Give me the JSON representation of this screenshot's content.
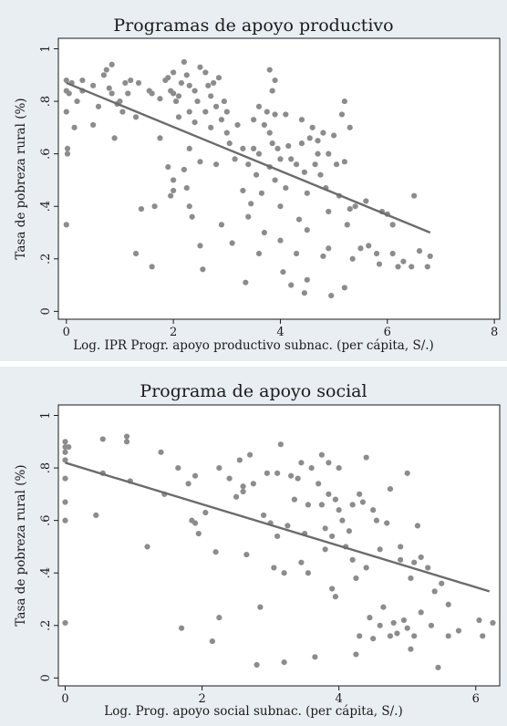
{
  "chart_data": [
    {
      "type": "scatter",
      "title": "Programas de apoyo productivo",
      "xlabel": "Log. IPR Progr. apoyo productivo subnac. (per cápita, S/.)",
      "ylabel": "Tasa de pobreza rural (%)",
      "xlim": [
        -0.15,
        8.1
      ],
      "ylim": [
        -0.03,
        1.04
      ],
      "xticks": [
        0,
        2,
        4,
        6,
        8
      ],
      "yticks": [
        0,
        0.2,
        0.4,
        0.6,
        0.8,
        1
      ],
      "ytick_labels": [
        "0",
        ".2",
        ".4",
        ".6",
        ".8",
        "1"
      ],
      "grid": false,
      "colors": {
        "points": "#8c8c8c",
        "fit": "#6b6b6b"
      },
      "fit_line": {
        "x": [
          0,
          6.8
        ],
        "y": [
          0.87,
          0.3
        ]
      },
      "points": [
        [
          0.0,
          0.88
        ],
        [
          0.0,
          0.84
        ],
        [
          0.0,
          0.76
        ],
        [
          0.02,
          0.62
        ],
        [
          0.02,
          0.6
        ],
        [
          0.0,
          0.33
        ],
        [
          0.05,
          0.83
        ],
        [
          0.1,
          0.87
        ],
        [
          0.15,
          0.7
        ],
        [
          0.2,
          0.8
        ],
        [
          0.3,
          0.88
        ],
        [
          0.3,
          0.84
        ],
        [
          0.5,
          0.86
        ],
        [
          0.5,
          0.71
        ],
        [
          0.6,
          0.78
        ],
        [
          0.7,
          0.9
        ],
        [
          0.75,
          0.92
        ],
        [
          0.8,
          0.85
        ],
        [
          0.85,
          0.83
        ],
        [
          0.85,
          0.94
        ],
        [
          0.9,
          0.66
        ],
        [
          0.95,
          0.79
        ],
        [
          1.0,
          0.8
        ],
        [
          1.05,
          0.76
        ],
        [
          1.1,
          0.87
        ],
        [
          1.15,
          0.83
        ],
        [
          1.2,
          0.88
        ],
        [
          1.3,
          0.74
        ],
        [
          1.35,
          0.87
        ],
        [
          1.3,
          0.22
        ],
        [
          1.4,
          0.39
        ],
        [
          1.55,
          0.84
        ],
        [
          1.6,
          0.83
        ],
        [
          1.65,
          0.4
        ],
        [
          1.6,
          0.17
        ],
        [
          1.75,
          0.81
        ],
        [
          1.75,
          0.66
        ],
        [
          1.85,
          0.88
        ],
        [
          1.9,
          0.89
        ],
        [
          1.95,
          0.84
        ],
        [
          2.0,
          0.91
        ],
        [
          2.0,
          0.83
        ],
        [
          2.05,
          0.8
        ],
        [
          2.0,
          0.46
        ],
        [
          2.0,
          0.5
        ],
        [
          1.95,
          0.44
        ],
        [
          1.9,
          0.55
        ],
        [
          2.1,
          0.82
        ],
        [
          2.1,
          0.74
        ],
        [
          2.15,
          0.87
        ],
        [
          2.2,
          0.95
        ],
        [
          2.25,
          0.9
        ],
        [
          2.3,
          0.86
        ],
        [
          2.3,
          0.76
        ],
        [
          2.3,
          0.62
        ],
        [
          2.2,
          0.54
        ],
        [
          2.25,
          0.47
        ],
        [
          2.3,
          0.4
        ],
        [
          2.35,
          0.36
        ],
        [
          2.4,
          0.84
        ],
        [
          2.4,
          0.72
        ],
        [
          2.45,
          0.8
        ],
        [
          2.5,
          0.93
        ],
        [
          2.5,
          0.57
        ],
        [
          2.5,
          0.25
        ],
        [
          2.55,
          0.16
        ],
        [
          2.6,
          0.91
        ],
        [
          2.6,
          0.76
        ],
        [
          2.65,
          0.86
        ],
        [
          2.7,
          0.82
        ],
        [
          2.7,
          0.7
        ],
        [
          2.75,
          0.87
        ],
        [
          2.8,
          0.78
        ],
        [
          2.8,
          0.56
        ],
        [
          2.85,
          0.89
        ],
        [
          2.9,
          0.33
        ],
        [
          2.9,
          0.73
        ],
        [
          2.95,
          0.8
        ],
        [
          3.0,
          0.76
        ],
        [
          3.0,
          0.68
        ],
        [
          3.05,
          0.64
        ],
        [
          3.1,
          0.26
        ],
        [
          3.15,
          0.58
        ],
        [
          3.2,
          0.71
        ],
        [
          3.3,
          0.62
        ],
        [
          3.3,
          0.46
        ],
        [
          3.35,
          0.11
        ],
        [
          3.4,
          0.56
        ],
        [
          3.4,
          0.36
        ],
        [
          3.45,
          0.41
        ],
        [
          3.5,
          0.73
        ],
        [
          3.5,
          0.62
        ],
        [
          3.55,
          0.52
        ],
        [
          3.6,
          0.78
        ],
        [
          3.6,
          0.6
        ],
        [
          3.6,
          0.22
        ],
        [
          3.65,
          0.45
        ],
        [
          3.7,
          0.71
        ],
        [
          3.7,
          0.3
        ],
        [
          3.75,
          0.76
        ],
        [
          3.8,
          0.92
        ],
        [
          3.8,
          0.68
        ],
        [
          3.8,
          0.55
        ],
        [
          3.85,
          0.84
        ],
        [
          3.85,
          0.64
        ],
        [
          3.9,
          0.88
        ],
        [
          3.9,
          0.75
        ],
        [
          3.9,
          0.5
        ],
        [
          3.95,
          0.62
        ],
        [
          4.0,
          0.58
        ],
        [
          4.0,
          0.4
        ],
        [
          4.0,
          0.27
        ],
        [
          4.05,
          0.15
        ],
        [
          4.1,
          0.75
        ],
        [
          4.1,
          0.47
        ],
        [
          4.15,
          0.63
        ],
        [
          4.2,
          0.58
        ],
        [
          4.2,
          0.1
        ],
        [
          4.3,
          0.56
        ],
        [
          4.3,
          0.22
        ],
        [
          4.35,
          0.35
        ],
        [
          4.4,
          0.73
        ],
        [
          4.4,
          0.64
        ],
        [
          4.45,
          0.53
        ],
        [
          4.5,
          0.31
        ],
        [
          4.5,
          0.45
        ],
        [
          4.55,
          0.66
        ],
        [
          4.6,
          0.7
        ],
        [
          4.65,
          0.56
        ],
        [
          4.7,
          0.65
        ],
        [
          4.7,
          0.6
        ],
        [
          4.75,
          0.52
        ],
        [
          4.8,
          0.68
        ],
        [
          4.8,
          0.21
        ],
        [
          4.85,
          0.47
        ],
        [
          4.9,
          0.6
        ],
        [
          4.9,
          0.38
        ],
        [
          5.0,
          0.67
        ],
        [
          5.05,
          0.56
        ],
        [
          5.1,
          0.44
        ],
        [
          5.15,
          0.75
        ],
        [
          5.2,
          0.8
        ],
        [
          5.2,
          0.57
        ],
        [
          5.25,
          0.33
        ],
        [
          5.3,
          0.7
        ],
        [
          5.3,
          0.39
        ],
        [
          5.35,
          0.2
        ],
        [
          5.4,
          0.4
        ],
        [
          5.5,
          0.24
        ],
        [
          5.6,
          0.42
        ],
        [
          5.65,
          0.25
        ],
        [
          5.8,
          0.22
        ],
        [
          5.9,
          0.38
        ],
        [
          6.0,
          0.37
        ],
        [
          6.1,
          0.22
        ],
        [
          6.2,
          0.17
        ],
        [
          6.3,
          0.19
        ],
        [
          6.5,
          0.44
        ],
        [
          6.6,
          0.23
        ],
        [
          6.8,
          0.21
        ],
        [
          6.75,
          0.17
        ],
        [
          5.2,
          0.09
        ],
        [
          4.95,
          0.06
        ],
        [
          4.45,
          0.07
        ],
        [
          4.9,
          0.24
        ],
        [
          6.1,
          0.33
        ],
        [
          5.85,
          0.18
        ],
        [
          6.45,
          0.17
        ],
        [
          4.5,
          0.12
        ]
      ]
    },
    {
      "type": "scatter",
      "title": "Programa de apoyo social",
      "xlabel": "Log. Prog. apoyo social subnac. (per cápita, S/.)",
      "ylabel": "Tasa de pobreza rural (%)",
      "xlim": [
        -0.1,
        6.35
      ],
      "ylim": [
        -0.03,
        1.04
      ],
      "xticks": [
        0,
        2,
        4,
        6
      ],
      "yticks": [
        0,
        0.2,
        0.4,
        0.6,
        0.8,
        1
      ],
      "ytick_labels": [
        "0",
        ".2",
        ".4",
        ".6",
        ".8",
        "1"
      ],
      "grid": false,
      "colors": {
        "points": "#8c8c8c",
        "fit": "#6b6b6b"
      },
      "fit_line": {
        "x": [
          0,
          6.2
        ],
        "y": [
          0.82,
          0.33
        ]
      },
      "points": [
        [
          0.0,
          0.9
        ],
        [
          0.0,
          0.88
        ],
        [
          0.0,
          0.86
        ],
        [
          0.0,
          0.83
        ],
        [
          0.0,
          0.76
        ],
        [
          0.0,
          0.67
        ],
        [
          0.0,
          0.6
        ],
        [
          0.0,
          0.21
        ],
        [
          0.05,
          0.88
        ],
        [
          0.45,
          0.62
        ],
        [
          0.55,
          0.91
        ],
        [
          0.55,
          0.78
        ],
        [
          0.9,
          0.92
        ],
        [
          0.9,
          0.9
        ],
        [
          0.95,
          0.75
        ],
        [
          1.2,
          0.5
        ],
        [
          1.4,
          0.86
        ],
        [
          1.45,
          0.7
        ],
        [
          1.65,
          0.8
        ],
        [
          1.7,
          0.19
        ],
        [
          1.8,
          0.74
        ],
        [
          1.85,
          0.6
        ],
        [
          1.9,
          0.59
        ],
        [
          1.95,
          0.55
        ],
        [
          1.9,
          0.77
        ],
        [
          2.05,
          0.63
        ],
        [
          2.15,
          0.14
        ],
        [
          2.2,
          0.48
        ],
        [
          2.25,
          0.8
        ],
        [
          2.25,
          0.23
        ],
        [
          2.4,
          0.76
        ],
        [
          2.5,
          0.69
        ],
        [
          2.55,
          0.83
        ],
        [
          2.6,
          0.71
        ],
        [
          2.6,
          0.73
        ],
        [
          2.65,
          0.47
        ],
        [
          2.7,
          0.85
        ],
        [
          2.75,
          0.74
        ],
        [
          2.8,
          0.05
        ],
        [
          2.85,
          0.27
        ],
        [
          2.9,
          0.62
        ],
        [
          2.95,
          0.78
        ],
        [
          3.0,
          0.59
        ],
        [
          3.05,
          0.42
        ],
        [
          3.1,
          0.54
        ],
        [
          3.1,
          0.78
        ],
        [
          3.15,
          0.89
        ],
        [
          3.2,
          0.4
        ],
        [
          3.2,
          0.06
        ],
        [
          3.25,
          0.58
        ],
        [
          3.3,
          0.77
        ],
        [
          3.35,
          0.68
        ],
        [
          3.4,
          0.76
        ],
        [
          3.45,
          0.82
        ],
        [
          3.45,
          0.44
        ],
        [
          3.5,
          0.55
        ],
        [
          3.55,
          0.66
        ],
        [
          3.55,
          0.4
        ],
        [
          3.6,
          0.8
        ],
        [
          3.65,
          0.08
        ],
        [
          3.7,
          0.74
        ],
        [
          3.75,
          0.66
        ],
        [
          3.75,
          0.85
        ],
        [
          3.8,
          0.57
        ],
        [
          3.8,
          0.49
        ],
        [
          3.85,
          0.82
        ],
        [
          3.85,
          0.7
        ],
        [
          3.9,
          0.34
        ],
        [
          3.9,
          0.54
        ],
        [
          3.95,
          0.68
        ],
        [
          4.0,
          0.64
        ],
        [
          4.0,
          0.8
        ],
        [
          4.05,
          0.6
        ],
        [
          4.1,
          0.5
        ],
        [
          4.15,
          0.56
        ],
        [
          4.2,
          0.66
        ],
        [
          4.2,
          0.45
        ],
        [
          4.25,
          0.09
        ],
        [
          4.25,
          0.38
        ],
        [
          4.3,
          0.7
        ],
        [
          4.3,
          0.16
        ],
        [
          4.35,
          0.67
        ],
        [
          4.4,
          0.84
        ],
        [
          4.4,
          0.42
        ],
        [
          4.45,
          0.23
        ],
        [
          4.5,
          0.64
        ],
        [
          4.5,
          0.15
        ],
        [
          4.55,
          0.6
        ],
        [
          4.6,
          0.49
        ],
        [
          4.65,
          0.27
        ],
        [
          4.7,
          0.59
        ],
        [
          4.75,
          0.72
        ],
        [
          4.8,
          0.21
        ],
        [
          4.85,
          0.17
        ],
        [
          4.9,
          0.45
        ],
        [
          4.95,
          0.22
        ],
        [
          5.0,
          0.78
        ],
        [
          5.0,
          0.19
        ],
        [
          5.05,
          0.38
        ],
        [
          5.1,
          0.44
        ],
        [
          5.1,
          0.16
        ],
        [
          5.15,
          0.58
        ],
        [
          5.2,
          0.46
        ],
        [
          5.2,
          0.25
        ],
        [
          5.3,
          0.42
        ],
        [
          5.35,
          0.2
        ],
        [
          5.4,
          0.33
        ],
        [
          5.45,
          0.04
        ],
        [
          5.5,
          0.36
        ],
        [
          5.6,
          0.28
        ],
        [
          5.6,
          0.16
        ],
        [
          5.75,
          0.18
        ],
        [
          6.05,
          0.22
        ],
        [
          6.1,
          0.16
        ],
        [
          6.25,
          0.21
        ],
        [
          4.9,
          0.5
        ],
        [
          5.05,
          0.11
        ],
        [
          4.75,
          0.16
        ],
        [
          4.6,
          0.2
        ],
        [
          3.95,
          0.31
        ]
      ]
    }
  ]
}
